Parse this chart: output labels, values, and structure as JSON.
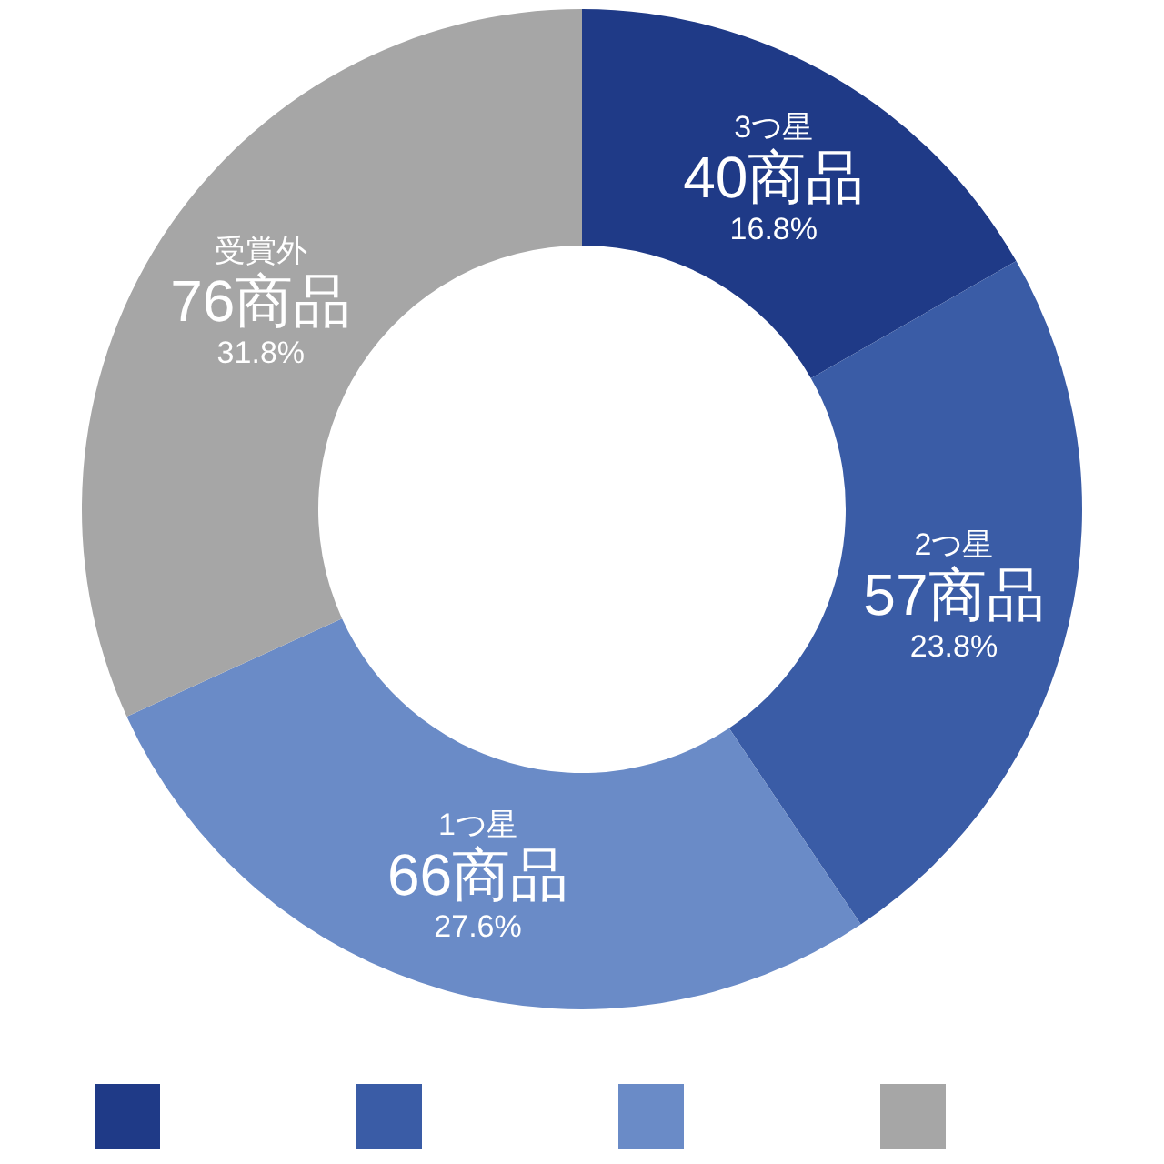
{
  "chart_data": {
    "type": "donut",
    "categories": [
      "3つ星",
      "2つ星",
      "1つ星",
      "受賞外"
    ],
    "values": [
      40,
      57,
      66,
      76
    ],
    "value_labels": [
      "40商品",
      "57商品",
      "66商品",
      "76商品"
    ],
    "colors": [
      "#1f3a87",
      "#3a5ca6",
      "#6a8bc7",
      "#a6a6a6"
    ],
    "annotations": [
      {
        "text": "16.8%",
        "x": "3つ星"
      },
      {
        "text": "23.8%",
        "x": "2つ星"
      },
      {
        "text": "27.6%",
        "x": "1つ星"
      },
      {
        "text": "31.8%",
        "x": "受賞外"
      }
    ],
    "legend": false
  }
}
